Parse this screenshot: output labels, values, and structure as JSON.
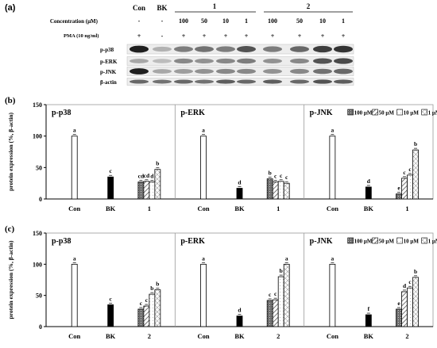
{
  "panel_a": {
    "letter": "(a)",
    "concentration_label": "Concentration (μM)",
    "pma_label": "PMA (10 ng/ml)",
    "header_con": "Con",
    "header_bk": "BK",
    "header_group1": "1",
    "header_group2": "2",
    "concentrations": [
      "-",
      "-",
      "100",
      "50",
      "10",
      "1",
      "100",
      "50",
      "10",
      "1"
    ],
    "pma": [
      "+",
      "-",
      "+",
      "+",
      "+",
      "+",
      "+",
      "+",
      "+",
      "+"
    ],
    "rows": [
      "p-p38",
      "p-ERK",
      "p-JNK",
      "β-actin"
    ]
  },
  "chart_data": [
    {
      "type": "bar",
      "panel": "(b)",
      "ylabel": "protein expression (%, β-actin)",
      "ylim": [
        0,
        150
      ],
      "yticks": [
        0,
        50,
        100,
        150
      ],
      "legend": [
        "100 μM",
        "50 μM",
        "10 μM",
        "1 μM"
      ],
      "legend_placement": "top-right",
      "subplots": [
        {
          "title": "p-p38",
          "categories": [
            "Con",
            "BK",
            "1"
          ],
          "con": 100,
          "bk": 35,
          "treat": [
            27,
            28,
            27,
            47
          ],
          "labels": {
            "con": "a",
            "bk": "c",
            "treat": [
              "cd",
              "cd",
              "d",
              "b"
            ]
          }
        },
        {
          "title": "p-ERK",
          "categories": [
            "Con",
            "BK",
            "1"
          ],
          "con": 100,
          "bk": 17,
          "treat": [
            32,
            27,
            28,
            25
          ],
          "labels": {
            "con": "a",
            "bk": "d",
            "treat": [
              "b",
              "c",
              "c",
              "c"
            ]
          }
        },
        {
          "title": "p-JNK",
          "categories": [
            "Con",
            "BK",
            "1"
          ],
          "con": 100,
          "bk": 19,
          "treat": [
            8,
            33,
            38,
            78
          ],
          "labels": {
            "con": "a",
            "bk": "d",
            "treat": [
              "e",
              "c",
              "c",
              "b"
            ]
          }
        }
      ]
    },
    {
      "type": "bar",
      "panel": "(c)",
      "ylabel": "protein expression (%, β-actin)",
      "ylim": [
        0,
        150
      ],
      "yticks": [
        0,
        50,
        100,
        150
      ],
      "legend": [
        "100 μM",
        "50 μM",
        "10 μM",
        "1 μM"
      ],
      "legend_placement": "top-right",
      "subplots": [
        {
          "title": "p-p38",
          "categories": [
            "Con",
            "BK",
            "2"
          ],
          "con": 100,
          "bk": 35,
          "treat": [
            28,
            33,
            52,
            59
          ],
          "labels": {
            "con": "a",
            "bk": "c",
            "treat": [
              "c",
              "c",
              "b",
              "b"
            ]
          }
        },
        {
          "title": "p-ERK",
          "categories": [
            "Con",
            "BK",
            "2"
          ],
          "con": 100,
          "bk": 17,
          "treat": [
            42,
            43,
            80,
            100
          ],
          "labels": {
            "con": "a",
            "bk": "d",
            "treat": [
              "c",
              "c",
              "b",
              "a"
            ]
          }
        },
        {
          "title": "p-JNK",
          "categories": [
            "Con",
            "BK",
            "2"
          ],
          "con": 100,
          "bk": 19,
          "treat": [
            28,
            56,
            62,
            79
          ],
          "labels": {
            "con": "a",
            "bk": "f",
            "treat": [
              "e",
              "d",
              "c",
              "b"
            ]
          }
        }
      ]
    }
  ]
}
